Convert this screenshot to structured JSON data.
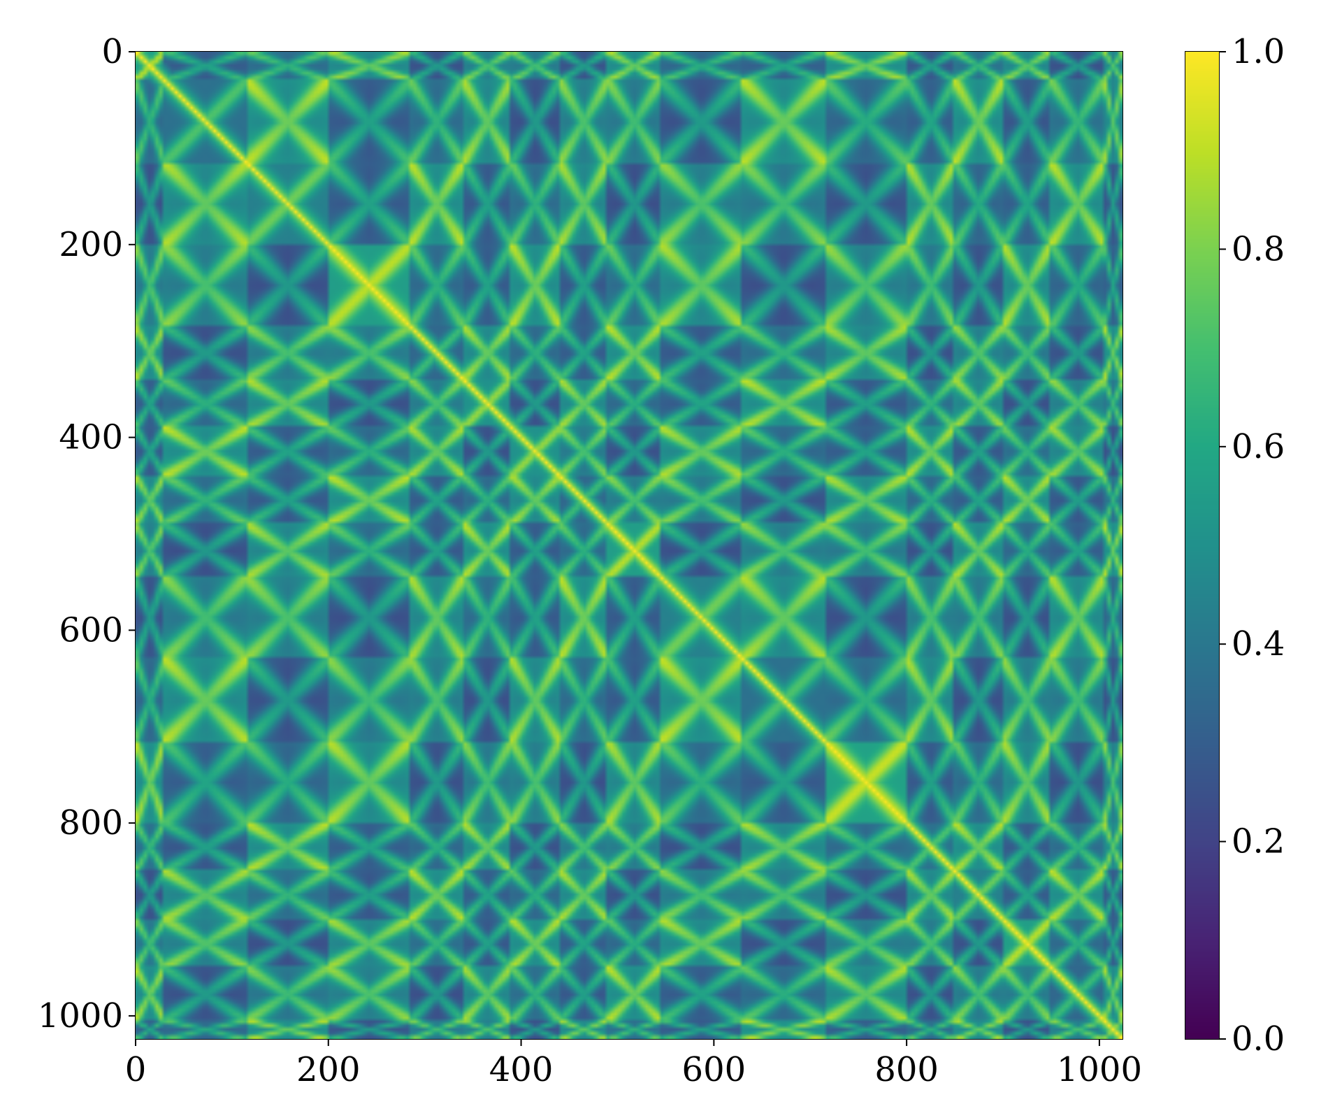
{
  "chart_data": {
    "type": "heatmap",
    "title": "",
    "xlabel": "",
    "ylabel": "",
    "x_range": [
      0,
      1024
    ],
    "y_range": [
      1024,
      0
    ],
    "y_inverted": true,
    "grid": false,
    "x_ticks": [
      0,
      200,
      400,
      600,
      800,
      1000
    ],
    "y_ticks": [
      0,
      200,
      400,
      600,
      800,
      1000
    ],
    "x_tick_labels": [
      "0",
      "200",
      "400",
      "600",
      "800",
      "1000"
    ],
    "y_tick_labels": [
      "0",
      "200",
      "400",
      "600",
      "800",
      "1000"
    ],
    "colormap": "viridis",
    "colorbar": {
      "range": [
        0.0,
        1.0
      ],
      "ticks": [
        0.0,
        0.2,
        0.4,
        0.6,
        0.8,
        1.0
      ],
      "tick_labels": [
        "0.0",
        "0.2",
        "0.4",
        "0.6",
        "0.8",
        "1.0"
      ],
      "placement": "right"
    },
    "description_values": {
      "diagonal_value": 1.0,
      "segment_boundaries": [
        0,
        30,
        115,
        200,
        285,
        340,
        390,
        440,
        490,
        545,
        630,
        715,
        800,
        850,
        900,
        950,
        1005,
        1024
      ],
      "min_value": 0.0,
      "max_value": 1.0
    }
  }
}
